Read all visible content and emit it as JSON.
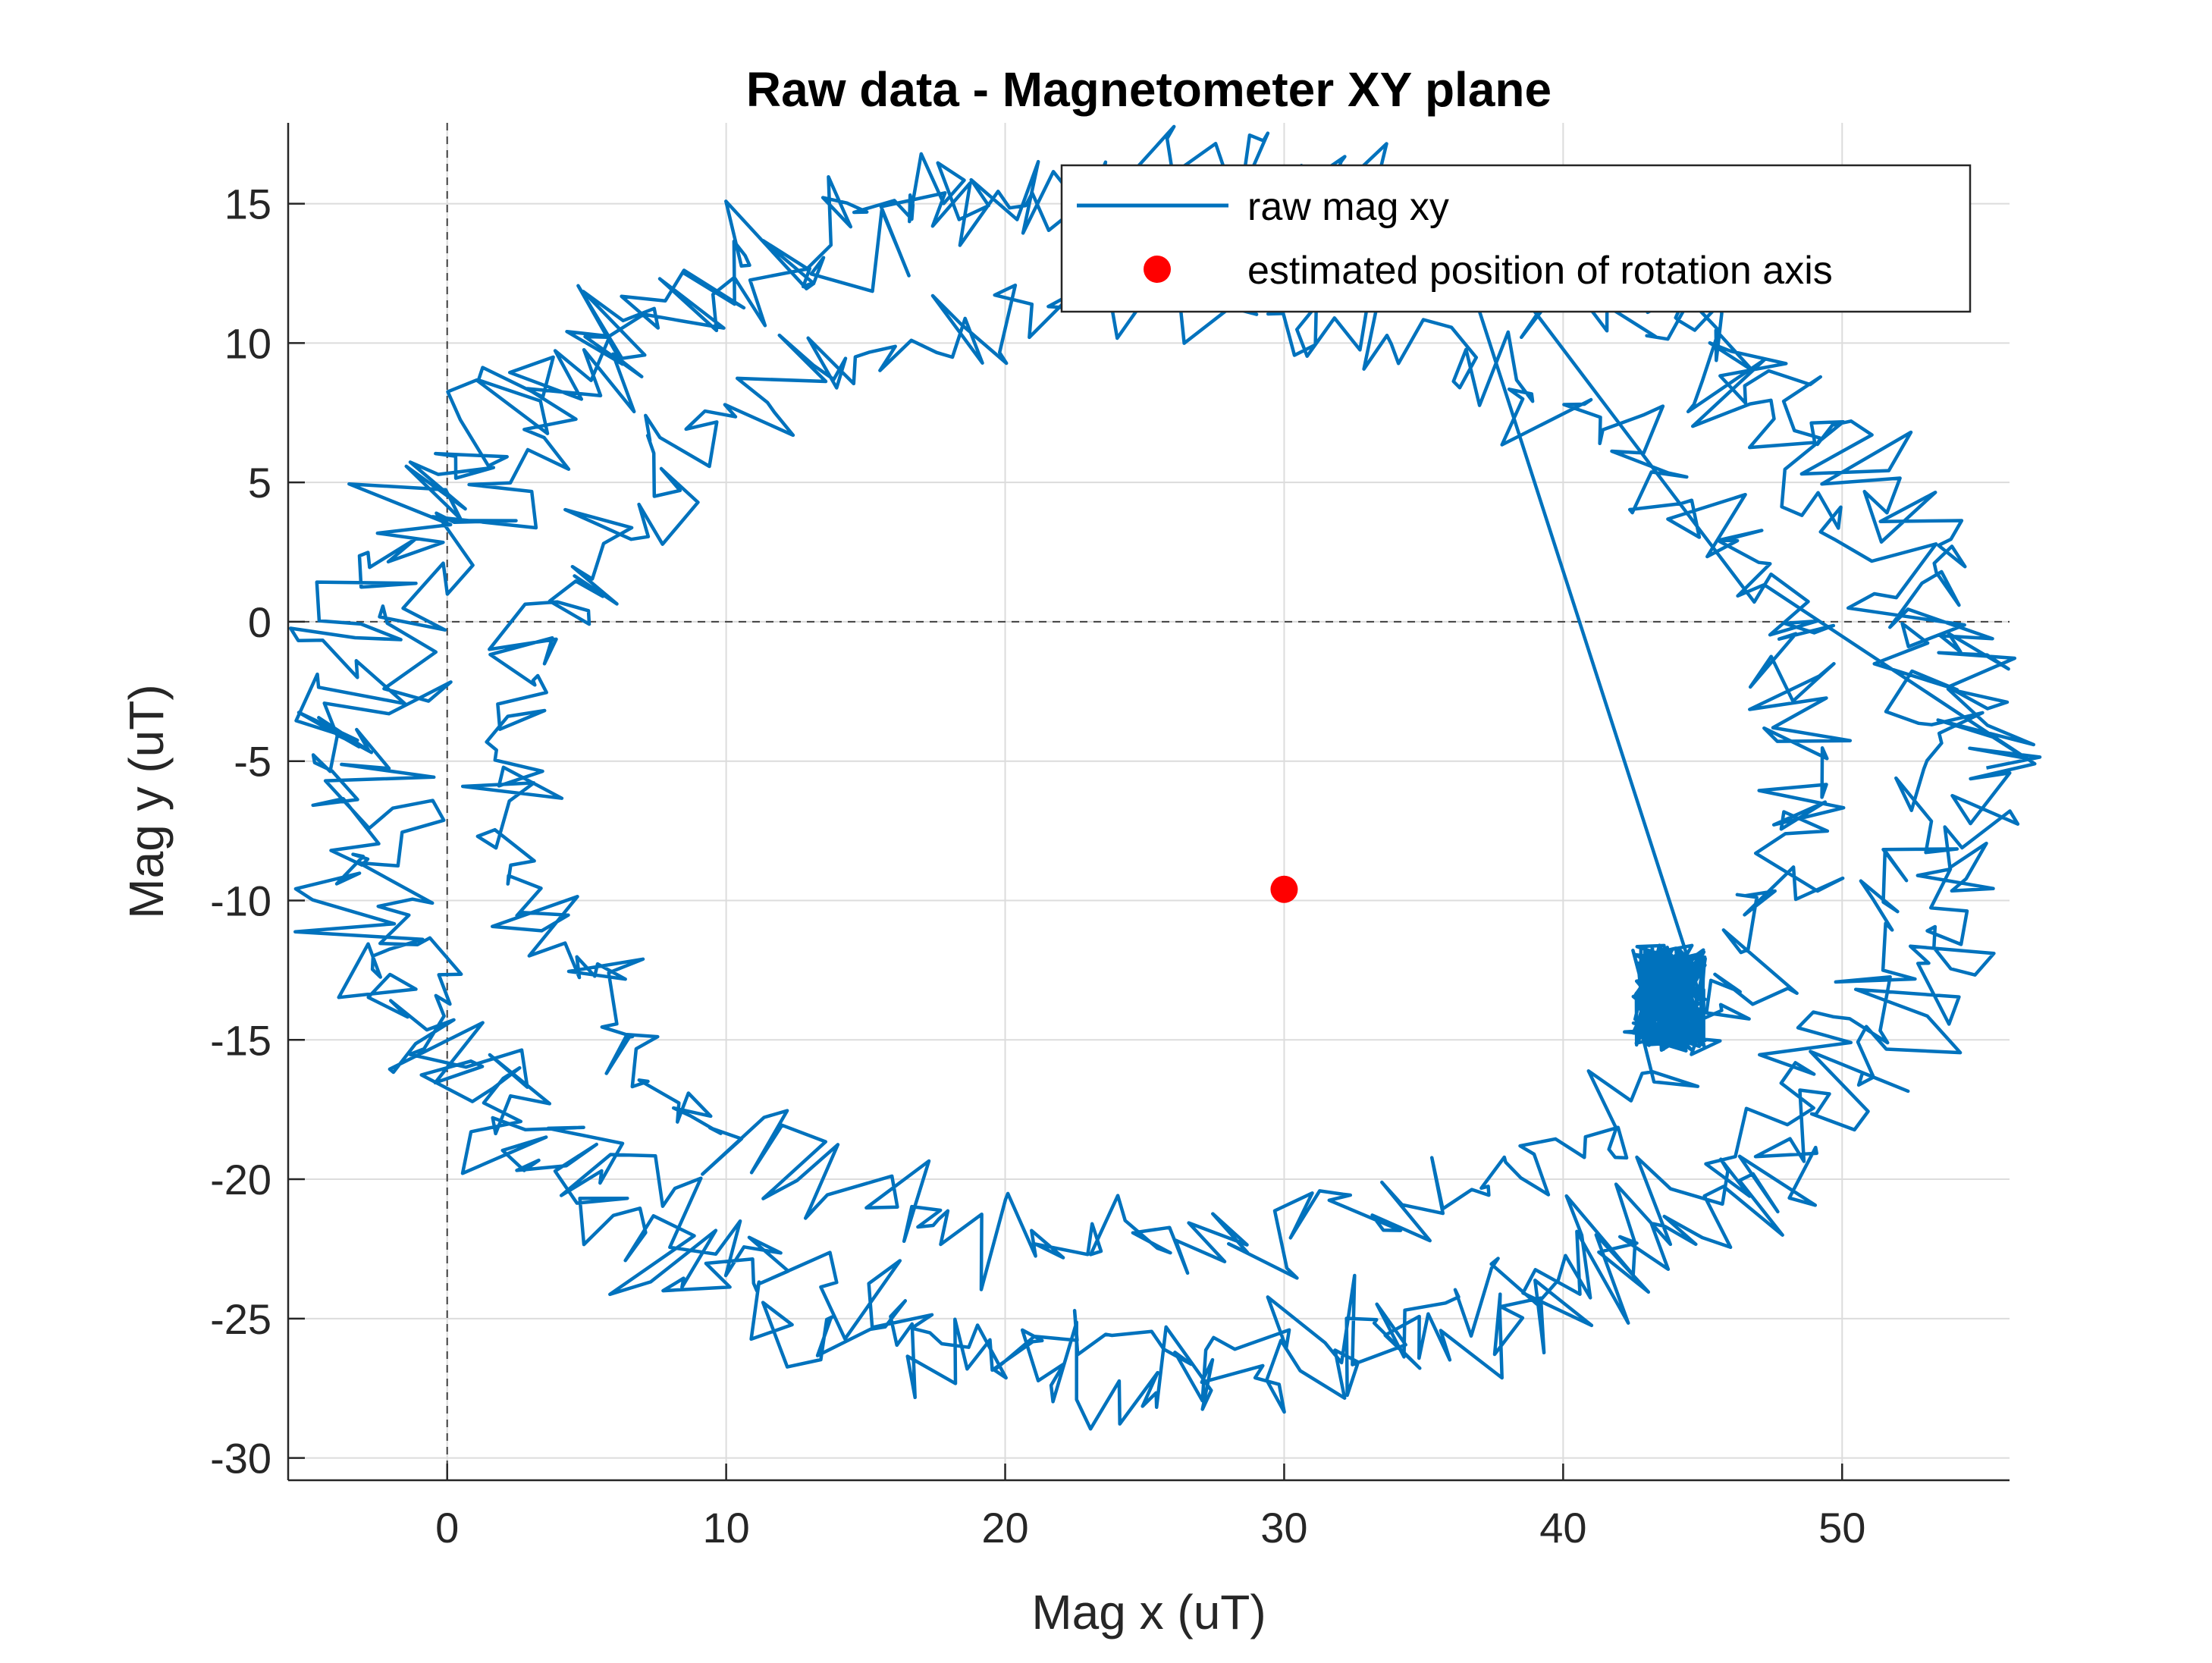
{
  "chart_data": {
    "type": "line",
    "title": "Raw data - Magnetometer XY plane",
    "xlabel": "Mag x (uT)",
    "ylabel": "Mag y (uT)",
    "xlim": [
      -5.7,
      56
    ],
    "ylim": [
      -30.8,
      17.9
    ],
    "xticks": [
      0,
      10,
      20,
      30,
      40,
      50
    ],
    "yticks": [
      15,
      10,
      5,
      0,
      -5,
      -10,
      -15,
      -20,
      -25,
      -30
    ],
    "xtick_labels": [
      "0",
      "10",
      "20",
      "30",
      "40",
      "50"
    ],
    "ytick_labels": [
      "15",
      "10",
      "5",
      "0",
      "-5",
      "-10",
      "-15",
      "-20",
      "-25",
      "-30"
    ],
    "grid": true,
    "reference_lines": {
      "x": 0,
      "y": 0,
      "style": "dashed"
    },
    "legend_position": "top-right",
    "series": [
      {
        "name": "raw mag xy",
        "kind": "line",
        "color": "#0072BD",
        "outer_ring": {
          "center": [
            25.5,
            -5.5
          ],
          "rx": 29.5,
          "ry": 21.5,
          "noise": 1.6
        },
        "inner_ring": {
          "center": [
            25.5,
            -5.5
          ],
          "rx": 23.0,
          "ry": 17.0,
          "noise": 1.5
        },
        "cluster": {
          "center": [
            43.8,
            -13.5
          ],
          "spread_x": 1.3,
          "spread_y": 1.9
        }
      },
      {
        "name": "estimated position of rotation axis",
        "kind": "marker",
        "color": "#FF0000",
        "x": 30.0,
        "y": -9.6
      }
    ]
  }
}
